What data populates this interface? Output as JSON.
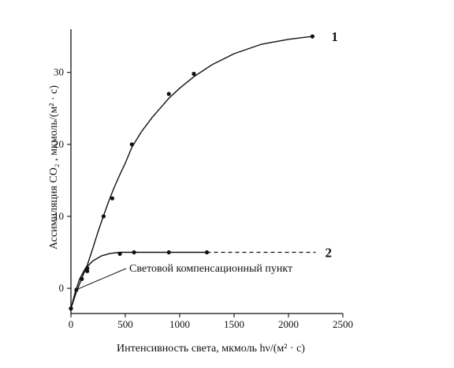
{
  "chart_data": {
    "type": "line",
    "xlabel": "Интенсивность света, мкмоль hν/(м² · с)",
    "ylabel": "Ассимиляция CO₂ , мкмоль/(м² · с)",
    "xlim": [
      0,
      2500
    ],
    "ylim": [
      -3.5,
      36
    ],
    "x_ticks": [
      0,
      500,
      1000,
      1500,
      2000,
      2500
    ],
    "y_ticks": [
      0,
      10,
      20,
      30
    ],
    "grid": false,
    "legend": "none",
    "series": [
      {
        "name": "1",
        "points": [
          {
            "x": 0,
            "y": -2.8
          },
          {
            "x": 50,
            "y": -0.2
          },
          {
            "x": 100,
            "y": 1.3
          },
          {
            "x": 150,
            "y": 2.8
          },
          {
            "x": 300,
            "y": 10
          },
          {
            "x": 380,
            "y": 12.5
          },
          {
            "x": 560,
            "y": 20
          },
          {
            "x": 900,
            "y": 27
          },
          {
            "x": 1130,
            "y": 29.8
          },
          {
            "x": 2220,
            "y": 35
          }
        ],
        "curve": [
          [
            0,
            -2.8
          ],
          [
            50,
            -0.5
          ],
          [
            100,
            1.4
          ],
          [
            150,
            3.2
          ],
          [
            200,
            5.5
          ],
          [
            250,
            7.9
          ],
          [
            300,
            10.1
          ],
          [
            350,
            12.2
          ],
          [
            400,
            14.1
          ],
          [
            450,
            15.8
          ],
          [
            500,
            17.4
          ],
          [
            560,
            19.6
          ],
          [
            650,
            21.8
          ],
          [
            750,
            23.8
          ],
          [
            900,
            26.4
          ],
          [
            1000,
            27.8
          ],
          [
            1130,
            29.4
          ],
          [
            1300,
            31.1
          ],
          [
            1500,
            32.6
          ],
          [
            1750,
            33.9
          ],
          [
            2000,
            34.6
          ],
          [
            2220,
            35.0
          ]
        ]
      },
      {
        "name": "2",
        "points": [
          {
            "x": 0,
            "y": -2.8
          },
          {
            "x": 150,
            "y": 2.4
          },
          {
            "x": 450,
            "y": 4.8
          },
          {
            "x": 580,
            "y": 5
          },
          {
            "x": 900,
            "y": 5
          },
          {
            "x": 1250,
            "y": 5
          }
        ],
        "curve": [
          [
            0,
            -2.8
          ],
          [
            40,
            -0.5
          ],
          [
            80,
            1.3
          ],
          [
            130,
            2.7
          ],
          [
            200,
            3.8
          ],
          [
            280,
            4.5
          ],
          [
            360,
            4.85
          ],
          [
            450,
            5.0
          ],
          [
            600,
            5.0
          ],
          [
            900,
            5.0
          ],
          [
            1250,
            5.0
          ]
        ],
        "dashed_extension": [
          [
            1250,
            5.0
          ],
          [
            2250,
            5.0
          ]
        ]
      }
    ],
    "annotation": {
      "text": "Световой компенсационный пункт",
      "target": {
        "x": 50,
        "y": -0.2
      }
    }
  }
}
